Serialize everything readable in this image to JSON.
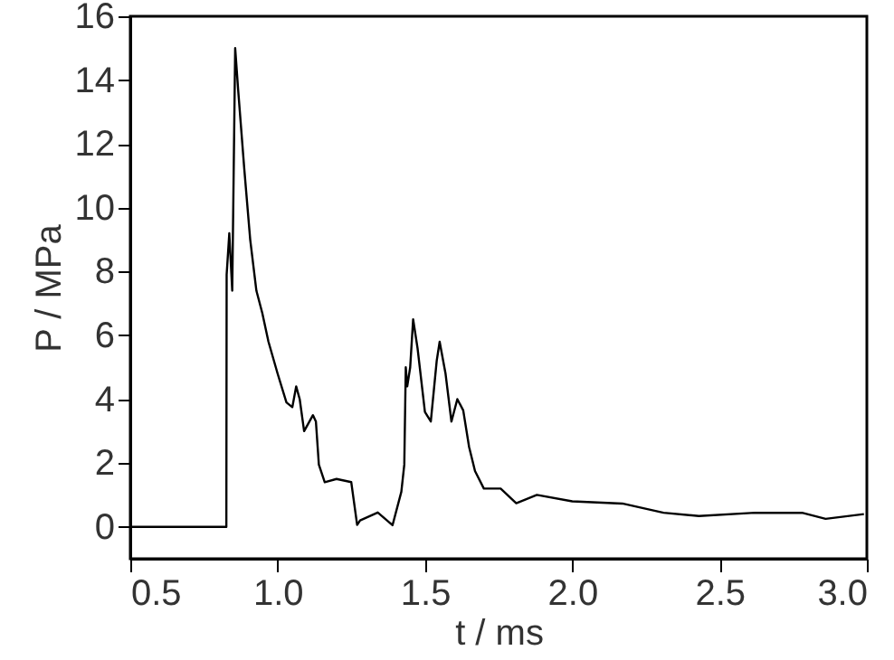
{
  "chart_data": {
    "type": "line",
    "xlabel": "t / ms",
    "ylabel": "P / MPa",
    "x": [
      0.5,
      0.6,
      0.7,
      0.826,
      0.827,
      0.836,
      0.846,
      0.856,
      0.866,
      0.887,
      0.907,
      0.928,
      0.948,
      0.969,
      1.0,
      1.03,
      1.05,
      1.063,
      1.075,
      1.09,
      1.12,
      1.13,
      1.14,
      1.16,
      1.2,
      1.25,
      1.27,
      1.28,
      1.34,
      1.39,
      1.42,
      1.43,
      1.435,
      1.44,
      1.45,
      1.46,
      1.475,
      1.5,
      1.52,
      1.54,
      1.55,
      1.57,
      1.59,
      1.61,
      1.63,
      1.65,
      1.67,
      1.7,
      1.74,
      1.757,
      1.81,
      1.88,
      2.0,
      2.17,
      2.31,
      2.43,
      2.62,
      2.78,
      2.86,
      2.99
    ],
    "series": [
      {
        "color": "#000000",
        "values": [
          0,
          0,
          0,
          0,
          7.9,
          9.2,
          7.4,
          15.0,
          13.7,
          11.2,
          9.0,
          7.4,
          6.7,
          5.8,
          4.8,
          3.9,
          3.75,
          4.4,
          4.0,
          3.0,
          3.5,
          3.3,
          1.95,
          1.4,
          1.5,
          1.4,
          0.06,
          0.2,
          0.45,
          0.05,
          1.1,
          1.95,
          5.0,
          4.4,
          5.0,
          6.5,
          5.6,
          3.6,
          3.3,
          5.2,
          5.8,
          4.8,
          3.3,
          4.0,
          3.65,
          2.5,
          1.75,
          1.2,
          1.2,
          1.2,
          0.74,
          1.0,
          0.8,
          0.73,
          0.44,
          0.34,
          0.44,
          0.44,
          0.25,
          0.4
        ]
      }
    ],
    "xlim": [
      0.5,
      3.0
    ],
    "xticks": [
      {
        "value": 0.5,
        "label": "0.5"
      },
      {
        "value": 1.0,
        "label": "1.0"
      },
      {
        "value": 1.5,
        "label": "1.5"
      },
      {
        "value": 2.0,
        "label": "2.0"
      },
      {
        "value": 2.5,
        "label": "2.5"
      },
      {
        "value": 3.0,
        "label": "3.0"
      }
    ],
    "ylim": [
      -1,
      16
    ],
    "yticks": [
      0,
      2,
      4,
      6,
      8,
      10,
      12,
      14,
      16
    ],
    "grid": false,
    "marker": "none",
    "line_style": "solid"
  }
}
